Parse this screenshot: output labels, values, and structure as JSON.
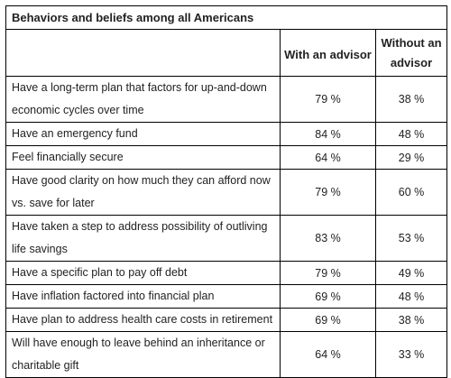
{
  "table": {
    "title": "Behaviors and beliefs among all Americans",
    "columns": [
      "With an advisor",
      "Without an advisor"
    ],
    "rows": [
      {
        "label": "Have a long-term plan that factors for up-and-down economic cycles over time",
        "with": "79 %",
        "without": "38 %"
      },
      {
        "label": "Have an emergency fund",
        "with": "84 %",
        "without": "48 %"
      },
      {
        "label": "Feel financially secure",
        "with": "64 %",
        "without": "29 %"
      },
      {
        "label": "Have good clarity on how much they can afford now vs. save for later",
        "with": "79 %",
        "without": "60 %"
      },
      {
        "label": "Have taken a step to address possibility of outliving life savings",
        "with": "83 %",
        "without": "53 %"
      },
      {
        "label": "Have a specific plan to pay off debt",
        "with": "79 %",
        "without": "49 %"
      },
      {
        "label": "Have inflation factored into financial plan",
        "with": "69 %",
        "without": "48 %"
      },
      {
        "label": "Have plan to address health care costs in retirement",
        "with": "69 %",
        "without": "38 %"
      },
      {
        "label": "Will have enough to leave behind an inheritance or charitable gift",
        "with": "64 %",
        "without": "33 %"
      }
    ]
  }
}
